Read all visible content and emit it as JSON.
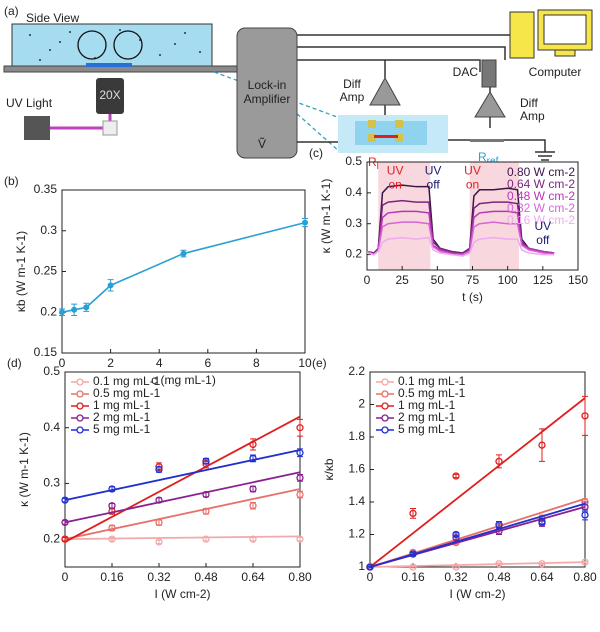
{
  "schematic": {
    "panel": "(a)",
    "side_view": "Side View",
    "uv_light": "UV Light",
    "objective": "20X",
    "lock_in": [
      "Lock-in",
      "Amplifier"
    ],
    "voltage": "Ṽ",
    "diff_amp_1": [
      "Diff",
      "Amp"
    ],
    "diff_amp_2": [
      "Diff",
      "Amp"
    ],
    "dac": "DAC",
    "computer": "Computer",
    "r_heater": [
      "R",
      "heater"
    ],
    "r_ref": [
      "R",
      "ref"
    ]
  },
  "chart_data": [
    {
      "type": "errorline",
      "panel": "(b)",
      "xlabel": "c (mg mL-1)",
      "ylabel": "κb (W m-1 K-1)",
      "x": [
        0,
        0.5,
        1,
        2,
        5,
        10
      ],
      "series": [
        {
          "color": "#2a9fd6",
          "values": [
            0.2,
            0.203,
            0.206,
            0.233,
            0.272,
            0.31
          ],
          "errors": [
            0.004,
            0.007,
            0.005,
            0.007,
            0.004,
            0.005
          ]
        }
      ],
      "xlim": [
        0,
        10
      ],
      "xticks": [
        0,
        2,
        4,
        6,
        8,
        10
      ],
      "ylim": [
        0.15,
        0.35
      ],
      "yticks": [
        0.15,
        0.2,
        0.25,
        0.3,
        0.35
      ]
    },
    {
      "type": "line",
      "panel": "(c)",
      "xlabel": "t (s)",
      "ylabel": "κ (W m-1 K-1)",
      "x": [
        0,
        5,
        8,
        11,
        15,
        25,
        35,
        44,
        47,
        52,
        60,
        68,
        73,
        76,
        80,
        90,
        100,
        107,
        110,
        115,
        125,
        133
      ],
      "shaded_spans": [
        [
          8,
          45
        ],
        [
          73,
          108
        ]
      ],
      "shade_color": "#f8d7df",
      "annotations": [
        [
          "UV",
          "on"
        ],
        [
          "UV",
          "off"
        ],
        [
          "UV",
          "on"
        ],
        [
          "UV",
          "off"
        ]
      ],
      "series": [
        {
          "name": "0.80 W cm-2",
          "color": "#3b1448",
          "values": [
            0.21,
            0.205,
            0.22,
            0.4,
            0.42,
            0.425,
            0.42,
            0.42,
            0.25,
            0.22,
            0.21,
            0.205,
            0.22,
            0.39,
            0.41,
            0.41,
            0.415,
            0.41,
            0.25,
            0.22,
            0.21,
            0.205
          ]
        },
        {
          "name": "0.64 W cm-2",
          "color": "#7b267d",
          "values": [
            0.21,
            0.205,
            0.22,
            0.36,
            0.37,
            0.375,
            0.37,
            0.37,
            0.24,
            0.22,
            0.21,
            0.205,
            0.22,
            0.35,
            0.365,
            0.37,
            0.37,
            0.365,
            0.24,
            0.22,
            0.21,
            0.205
          ]
        },
        {
          "name": "0.48 W cm-2",
          "color": "#b934b9",
          "values": [
            0.21,
            0.2,
            0.215,
            0.32,
            0.335,
            0.34,
            0.34,
            0.335,
            0.23,
            0.215,
            0.205,
            0.2,
            0.215,
            0.32,
            0.335,
            0.34,
            0.34,
            0.335,
            0.235,
            0.22,
            0.21,
            0.205
          ]
        },
        {
          "name": "0.32 W cm-2",
          "color": "#d566d5",
          "values": [
            0.21,
            0.2,
            0.215,
            0.29,
            0.3,
            0.305,
            0.305,
            0.3,
            0.225,
            0.21,
            0.2,
            0.2,
            0.21,
            0.29,
            0.3,
            0.305,
            0.3,
            0.3,
            0.23,
            0.215,
            0.205,
            0.2
          ]
        },
        {
          "name": "0.16 W cm-2",
          "color": "#efaaef",
          "values": [
            0.205,
            0.2,
            0.21,
            0.24,
            0.25,
            0.255,
            0.25,
            0.255,
            0.215,
            0.205,
            0.2,
            0.195,
            0.205,
            0.24,
            0.25,
            0.255,
            0.25,
            0.25,
            0.215,
            0.205,
            0.2,
            0.2
          ]
        }
      ],
      "xlim": [
        0,
        150
      ],
      "xticks": [
        0,
        25,
        50,
        75,
        100,
        125,
        150
      ],
      "ylim": [
        0.15,
        0.5
      ],
      "yticks": [
        0.2,
        0.3,
        0.4,
        0.5
      ]
    },
    {
      "type": "scatter",
      "panel": "(d)",
      "xlabel": "I (W cm-2)",
      "ylabel": "κ (W m-1 K-1)",
      "x": [
        0,
        0.16,
        0.32,
        0.48,
        0.64,
        0.8
      ],
      "fit_x": [
        0,
        0.8
      ],
      "series": [
        {
          "name": "0.1 mg mL-1",
          "color": "#f2a9a9",
          "values": [
            0.2,
            0.2,
            0.195,
            0.2,
            0.2,
            0.2
          ],
          "errors": [
            0.003,
            0.003,
            0.003,
            0.003,
            0.003,
            0.003
          ],
          "fit_values": [
            0.2,
            0.205
          ]
        },
        {
          "name": "0.5 mg mL-1",
          "color": "#e8706a",
          "values": [
            0.2,
            0.22,
            0.23,
            0.25,
            0.26,
            0.28
          ],
          "errors": [
            0.004,
            0.005,
            0.005,
            0.005,
            0.006,
            0.006
          ],
          "fit_values": [
            0.2,
            0.29
          ]
        },
        {
          "name": "1 mg mL-1",
          "color": "#e01e1e",
          "values": [
            0.2,
            0.25,
            0.33,
            0.335,
            0.37,
            0.4
          ],
          "errors": [
            0.003,
            0.005,
            0.007,
            0.007,
            0.01,
            0.015
          ],
          "fit_values": [
            0.195,
            0.42
          ]
        },
        {
          "name": "2 mg mL-1",
          "color": "#8a2090",
          "values": [
            0.23,
            0.26,
            0.27,
            0.28,
            0.29,
            0.31
          ],
          "errors": [
            0.003,
            0.004,
            0.004,
            0.004,
            0.005,
            0.006
          ],
          "fit_values": [
            0.23,
            0.32
          ]
        },
        {
          "name": "5 mg mL-1",
          "color": "#1f2fd0",
          "values": [
            0.27,
            0.29,
            0.325,
            0.34,
            0.345,
            0.355
          ],
          "errors": [
            0.003,
            0.004,
            0.005,
            0.005,
            0.006,
            0.007
          ],
          "fit_values": [
            0.27,
            0.36
          ]
        }
      ],
      "xlim": [
        0,
        0.8
      ],
      "xticks": [
        0,
        0.16,
        0.32,
        0.48,
        0.64,
        {
          "value": 0.8,
          "label": "0.80"
        }
      ],
      "ylim": [
        0.15,
        0.5
      ],
      "yticks": [
        0.2,
        0.3,
        0.4,
        0.5
      ]
    },
    {
      "type": "scatter",
      "panel": "(e)",
      "xlabel": "I (W cm-2)",
      "ylabel": "κ/κb",
      "x": [
        0,
        0.16,
        0.32,
        0.48,
        0.64,
        0.8
      ],
      "fit_x": [
        0,
        0.8
      ],
      "series": [
        {
          "name": "0.1 mg mL-1",
          "color": "#f2a9a9",
          "values": [
            1,
            1,
            1,
            1.02,
            1.02,
            1.03
          ],
          "errors": [
            0.005,
            0.005,
            0.005,
            0.005,
            0.005,
            0.005
          ],
          "fit_values": [
            1,
            1.03
          ]
        },
        {
          "name": "0.5 mg mL-1",
          "color": "#e8706a",
          "values": [
            1,
            1.09,
            1.15,
            1.25,
            1.3,
            1.4
          ],
          "errors": [
            0.005,
            0.01,
            0.01,
            0.01,
            0.02,
            0.02
          ],
          "fit_values": [
            1,
            1.42
          ]
        },
        {
          "name": "1 mg mL-1",
          "color": "#e01e1e",
          "values": [
            1,
            1.33,
            1.56,
            1.65,
            1.75,
            1.93
          ],
          "errors": [
            0.005,
            0.03,
            0.01,
            0.04,
            0.1,
            0.12
          ],
          "fit_values": [
            1,
            2.04
          ]
        },
        {
          "name": "2 mg mL-1",
          "color": "#8a2090",
          "values": [
            1,
            1.08,
            1.18,
            1.22,
            1.27,
            1.37
          ],
          "errors": [
            0.005,
            0.01,
            0.01,
            0.02,
            0.02,
            0.03
          ],
          "fit_values": [
            1,
            1.37
          ]
        },
        {
          "name": "5 mg mL-1",
          "color": "#1f2fd0",
          "values": [
            1,
            1.08,
            1.2,
            1.26,
            1.28,
            1.32
          ],
          "errors": [
            0.005,
            0.01,
            0.01,
            0.02,
            0.02,
            0.03
          ],
          "fit_values": [
            1,
            1.39
          ]
        }
      ],
      "xlim": [
        0,
        0.8
      ],
      "xticks": [
        0,
        0.16,
        0.32,
        0.48,
        0.64,
        {
          "value": 0.8,
          "label": "0.80"
        }
      ],
      "ylim": [
        1,
        2.2
      ],
      "yticks": [
        1,
        1.2,
        1.4,
        1.6,
        1.8,
        2,
        2.2
      ]
    }
  ]
}
